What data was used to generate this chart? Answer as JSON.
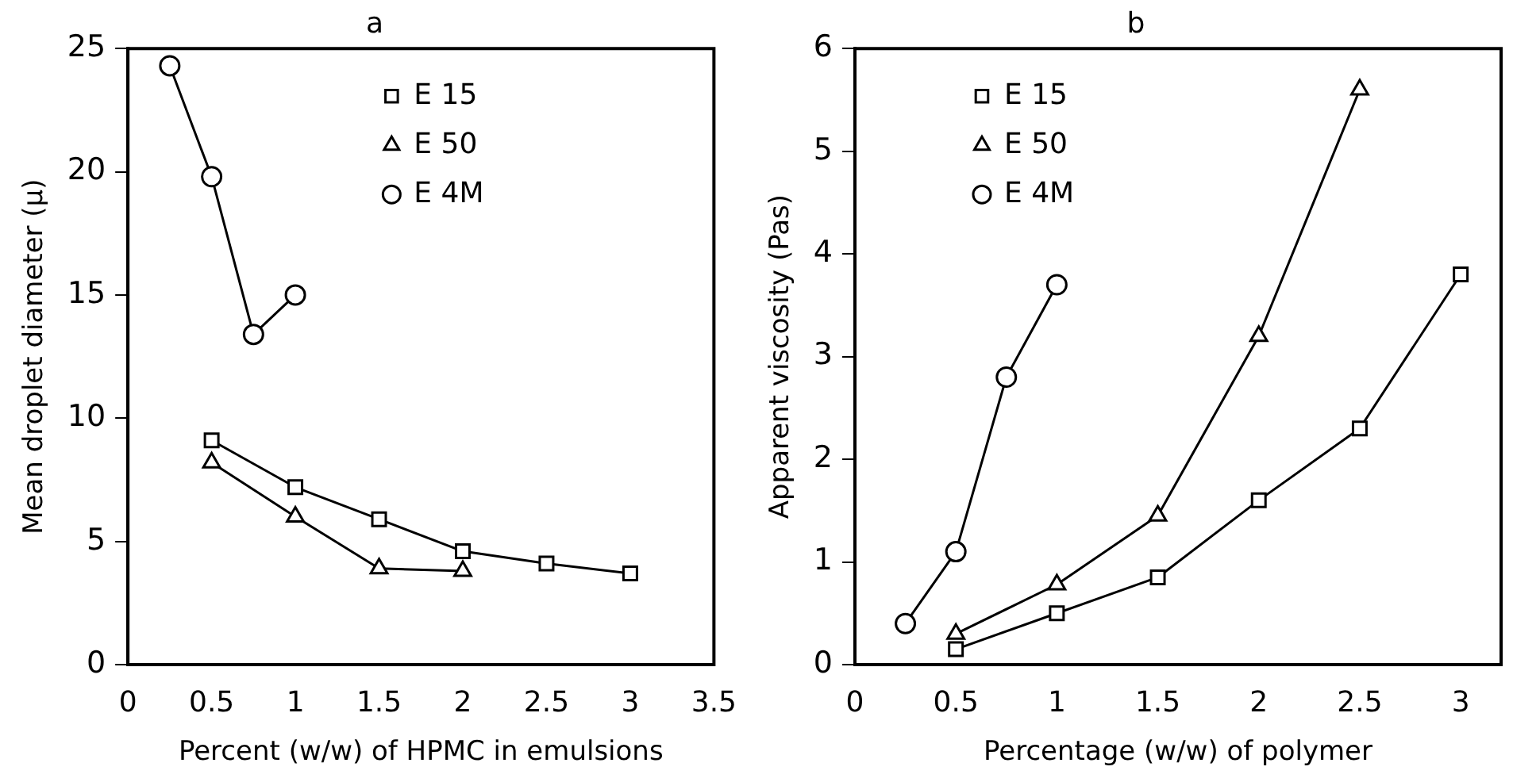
{
  "chart_data": [
    {
      "type": "line",
      "title": "a",
      "xlabel": "Percent (w/w) of HPMC in emulsions",
      "ylabel": "Mean droplet diameter (μ)",
      "xlim": [
        0,
        3.5
      ],
      "xticks": [
        0,
        0.5,
        1,
        1.5,
        2,
        2.5,
        3,
        3.5
      ],
      "ylim": [
        0,
        25
      ],
      "yticks": [
        0,
        5,
        10,
        15,
        20,
        25
      ],
      "grid": false,
      "legend": "top right",
      "series": [
        {
          "name": "E 15",
          "color": "#000000",
          "marker": "square",
          "x": [
            0.5,
            1,
            1.5,
            2,
            2.5,
            3
          ],
          "values": [
            9.1,
            7.2,
            5.9,
            4.6,
            4.1,
            3.7
          ]
        },
        {
          "name": "E 50",
          "color": "#000000",
          "marker": "triangle",
          "x": [
            0.5,
            1,
            1.5,
            2
          ],
          "values": [
            8.2,
            6.0,
            3.9,
            3.8
          ]
        },
        {
          "name": "E 4M",
          "color": "#000000",
          "marker": "circle",
          "x": [
            0.25,
            0.5,
            0.75,
            1
          ],
          "values": [
            24.3,
            19.8,
            13.4,
            15.0
          ]
        }
      ]
    },
    {
      "type": "line",
      "title": "b",
      "xlabel": "Percentage (w/w) of polymer",
      "ylabel": "Apparent viscosity (Pas)",
      "xlim": [
        0,
        3.2
      ],
      "xticks": [
        0,
        0.5,
        1,
        1.5,
        2,
        2.5,
        3
      ],
      "ylim": [
        0,
        6
      ],
      "yticks": [
        0,
        1,
        2,
        3,
        4,
        5,
        6
      ],
      "grid": false,
      "legend": "top left",
      "series": [
        {
          "name": "E 15",
          "color": "#000000",
          "marker": "square",
          "x": [
            0.5,
            1,
            1.5,
            2,
            2.5,
            3
          ],
          "values": [
            0.15,
            0.5,
            0.85,
            1.6,
            2.3,
            3.8
          ]
        },
        {
          "name": "E 50",
          "color": "#000000",
          "marker": "triangle",
          "x": [
            0.5,
            1,
            1.5,
            2,
            2.5
          ],
          "values": [
            0.3,
            0.78,
            1.45,
            3.2,
            5.6
          ]
        },
        {
          "name": "E 4M",
          "color": "#000000",
          "marker": "circle",
          "x": [
            0.25,
            0.5,
            0.75,
            1
          ],
          "values": [
            0.4,
            1.1,
            2.8,
            3.7
          ]
        }
      ]
    }
  ]
}
